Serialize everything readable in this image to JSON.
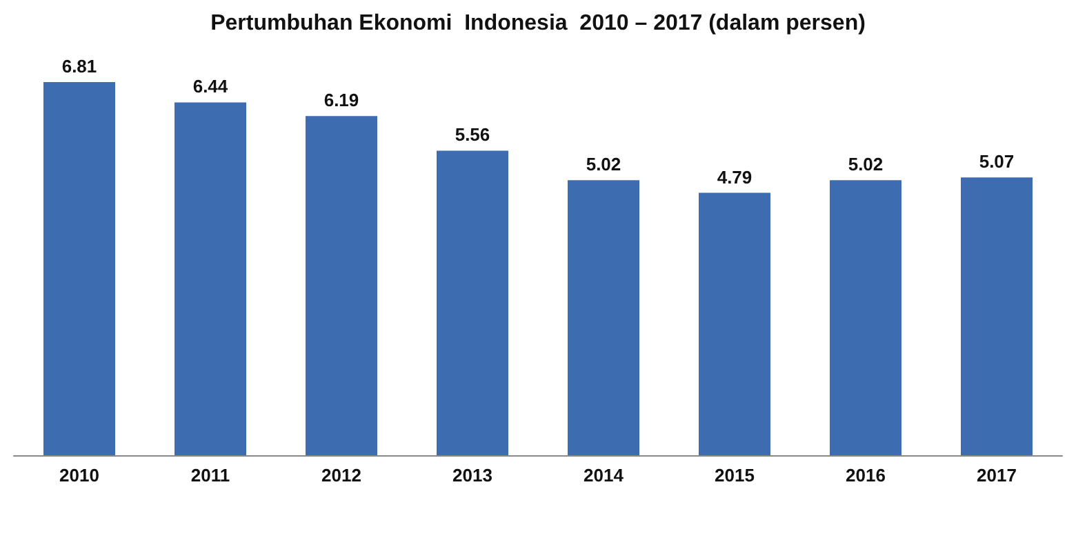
{
  "chart_data": {
    "type": "bar",
    "title": "Pertumbuhan Ekonomi  Indonesia  2010 – 2017 (dalam persen)",
    "categories": [
      "2010",
      "2011",
      "2012",
      "2013",
      "2014",
      "2015",
      "2016",
      "2017"
    ],
    "values": [
      6.81,
      6.44,
      6.19,
      5.56,
      5.02,
      4.79,
      5.02,
      5.07
    ],
    "color": "#3d6cb0",
    "data_labels": true
  }
}
